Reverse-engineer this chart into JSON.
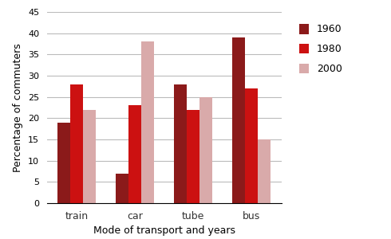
{
  "categories": [
    "train",
    "car",
    "tube",
    "bus"
  ],
  "series": {
    "1960": [
      19,
      7,
      28,
      39
    ],
    "1980": [
      28,
      23,
      22,
      27
    ],
    "2000": [
      22,
      38,
      25,
      15
    ]
  },
  "colors": {
    "1960": "#8B1A1A",
    "1980": "#CC1111",
    "2000": "#D9AAAA"
  },
  "xlabel": "Mode of transport and years",
  "ylabel": "Percentage of commuters",
  "ylim": [
    0,
    45
  ],
  "yticks": [
    0,
    5,
    10,
    15,
    20,
    25,
    30,
    35,
    40,
    45
  ],
  "legend_labels": [
    "1960",
    "1980",
    "2000"
  ],
  "bar_width": 0.22,
  "background_color": "#ffffff",
  "grid_color": "#bbbbbb",
  "figsize": [
    4.9,
    3.0
  ],
  "dpi": 100
}
